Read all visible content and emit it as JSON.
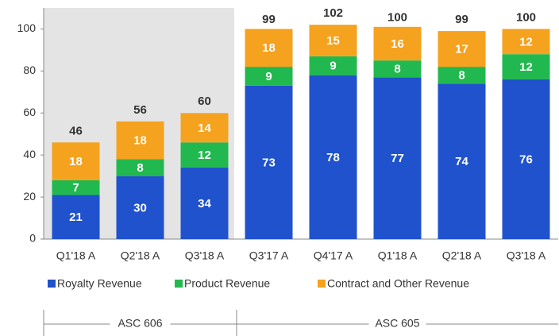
{
  "chart_data": {
    "type": "stacked_bar",
    "categories": [
      "Q1'18 A",
      "Q2'18 A",
      "Q3'18 A",
      "Q3'17 A",
      "Q4'17 A",
      "Q1'18 A",
      "Q2'18 A",
      "Q3'18 A"
    ],
    "series": [
      {
        "name": "Royalty Revenue",
        "color": "#1f52cc",
        "values": [
          21,
          30,
          34,
          73,
          78,
          77,
          74,
          76
        ]
      },
      {
        "name": "Product Revenue",
        "color": "#21b94f",
        "values": [
          7,
          8,
          12,
          9,
          9,
          8,
          8,
          12
        ]
      },
      {
        "name": "Contract and Other Revenue",
        "color": "#f5a21f",
        "values": [
          18,
          18,
          14,
          18,
          15,
          16,
          17,
          12
        ]
      }
    ],
    "totals": [
      46,
      56,
      60,
      99,
      102,
      100,
      99,
      100
    ],
    "groups": [
      {
        "label": "ASC 606",
        "count": 3,
        "shaded": true
      },
      {
        "label": "ASC 605",
        "count": 5,
        "shaded": false
      }
    ],
    "ylim": [
      0,
      110
    ],
    "yticks": [
      0,
      20,
      40,
      60,
      80,
      100
    ],
    "grid": false,
    "legend": "bottom"
  }
}
